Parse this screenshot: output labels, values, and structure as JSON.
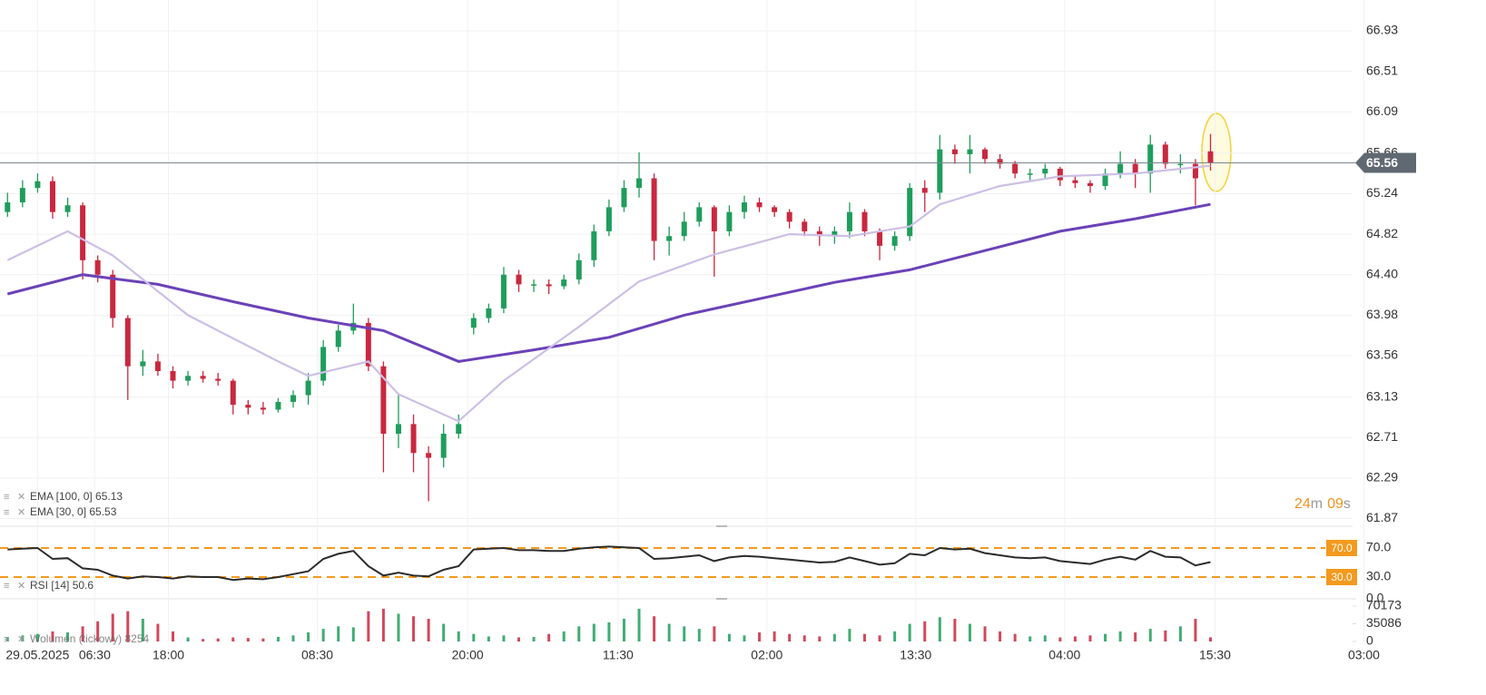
{
  "chart_data": [
    {
      "type": "candlestick",
      "xlim": [
        -0.5,
        91.5
      ],
      "ylim": [
        61.79,
        67.25
      ],
      "yticks": [
        66.93,
        66.51,
        66.09,
        65.66,
        65.24,
        64.82,
        {
          "value": 64.4,
          "label": "64.40"
        },
        63.98,
        63.56,
        63.13,
        62.71,
        62.29,
        61.87
      ],
      "up_color": "#1f9d5c",
      "down_color": "#c9283f",
      "open": [
        65.05,
        65.15,
        65.3,
        65.37,
        65.05,
        65.12,
        64.55,
        64.4,
        63.95,
        63.45,
        63.5,
        63.4,
        63.3,
        63.35,
        63.32,
        63.3,
        63.05,
        63.02,
        63.0,
        63.08,
        63.15,
        63.3,
        63.65,
        63.82,
        63.9,
        63.45,
        62.75,
        62.85,
        62.55,
        62.5,
        62.75,
        63.85,
        63.95,
        64.05,
        64.4,
        64.3,
        64.3,
        64.28,
        64.35,
        64.55,
        64.85,
        65.1,
        65.3,
        65.4,
        64.75,
        64.8,
        64.95,
        65.1,
        64.85,
        65.05,
        65.15,
        65.1,
        65.05,
        64.95,
        64.85,
        64.8,
        64.85,
        65.05,
        64.85,
        64.7,
        64.8,
        65.3,
        65.25,
        65.7,
        65.65,
        65.7,
        65.6,
        65.55,
        65.45,
        65.45,
        65.5,
        65.38,
        65.35,
        65.32,
        65.45,
        65.55,
        65.45,
        65.75,
        65.55,
        65.55,
        65.68
      ],
      "high": [
        65.25,
        65.38,
        65.45,
        65.42,
        65.2,
        65.15,
        64.6,
        64.45,
        63.98,
        63.62,
        63.58,
        63.45,
        63.4,
        63.4,
        63.38,
        63.32,
        63.1,
        63.08,
        63.12,
        63.2,
        63.38,
        63.72,
        63.88,
        64.1,
        63.95,
        63.5,
        63.15,
        62.95,
        62.62,
        62.85,
        62.95,
        64.0,
        64.1,
        64.48,
        64.45,
        64.35,
        64.35,
        64.4,
        64.62,
        64.92,
        65.18,
        65.38,
        65.67,
        65.45,
        64.9,
        65.05,
        65.15,
        65.12,
        65.12,
        65.22,
        65.2,
        65.12,
        65.08,
        64.98,
        64.9,
        64.9,
        65.15,
        65.08,
        64.88,
        64.85,
        65.35,
        65.38,
        65.85,
        65.75,
        65.85,
        65.72,
        65.65,
        65.58,
        65.5,
        65.55,
        65.52,
        65.42,
        65.38,
        65.5,
        65.68,
        65.6,
        65.85,
        65.78,
        65.65,
        65.6,
        65.86
      ],
      "low": [
        65.0,
        65.1,
        65.25,
        64.98,
        65.0,
        64.35,
        64.32,
        63.85,
        63.1,
        63.35,
        63.35,
        63.22,
        63.25,
        63.28,
        63.25,
        62.95,
        62.95,
        62.95,
        62.97,
        63.02,
        63.05,
        63.25,
        63.6,
        63.78,
        63.4,
        62.35,
        62.6,
        62.35,
        62.05,
        62.4,
        62.7,
        63.78,
        63.9,
        64.0,
        64.22,
        64.22,
        64.2,
        64.25,
        64.3,
        64.48,
        64.8,
        65.05,
        65.2,
        64.55,
        64.6,
        64.75,
        64.9,
        64.38,
        64.8,
        64.98,
        65.05,
        65.0,
        64.88,
        64.8,
        64.7,
        64.72,
        64.78,
        64.8,
        64.55,
        64.65,
        64.75,
        65.05,
        65.18,
        65.55,
        65.45,
        65.55,
        65.5,
        65.4,
        65.38,
        65.4,
        65.32,
        65.3,
        65.25,
        65.28,
        65.4,
        65.3,
        65.25,
        65.5,
        65.45,
        65.12,
        65.48
      ],
      "close": [
        65.15,
        65.3,
        65.37,
        65.05,
        65.12,
        64.55,
        64.4,
        63.95,
        63.45,
        63.5,
        63.4,
        63.3,
        63.35,
        63.32,
        63.3,
        63.05,
        63.02,
        63.0,
        63.08,
        63.15,
        63.3,
        63.65,
        63.82,
        63.9,
        63.45,
        62.75,
        62.85,
        62.55,
        62.5,
        62.75,
        62.85,
        63.95,
        64.05,
        64.4,
        64.3,
        64.3,
        64.28,
        64.35,
        64.55,
        64.85,
        65.1,
        65.3,
        65.4,
        64.75,
        64.8,
        64.95,
        65.1,
        64.85,
        65.05,
        65.15,
        65.1,
        65.05,
        64.95,
        64.85,
        64.8,
        64.85,
        65.05,
        64.85,
        64.7,
        64.8,
        65.3,
        65.25,
        65.7,
        65.65,
        65.7,
        65.6,
        65.55,
        65.45,
        65.45,
        65.5,
        65.38,
        65.35,
        65.32,
        65.45,
        65.55,
        65.45,
        65.75,
        65.55,
        65.55,
        65.4,
        65.56
      ],
      "series": [
        {
          "name": "EMA [100, 0] 65.13",
          "color": "#6b42b8",
          "x": [
            0,
            5,
            10,
            15,
            20,
            25,
            30,
            35,
            40,
            45,
            50,
            55,
            60,
            65,
            70,
            75,
            80
          ],
          "values": [
            64.2,
            64.4,
            64.3,
            64.12,
            63.95,
            63.82,
            63.5,
            63.62,
            63.75,
            63.98,
            64.15,
            64.32,
            64.45,
            64.65,
            64.85,
            64.98,
            65.13
          ]
        },
        {
          "name": "EMA [30, 0] 65.53",
          "color": "#cdbfe6",
          "x": [
            0,
            4,
            7,
            12,
            18,
            20,
            24,
            26,
            30,
            33,
            38,
            42,
            47,
            52,
            56,
            60,
            62,
            66,
            70,
            75,
            80
          ],
          "values": [
            64.55,
            64.85,
            64.6,
            63.98,
            63.5,
            63.35,
            63.5,
            63.16,
            62.88,
            63.3,
            63.86,
            64.33,
            64.61,
            64.82,
            64.8,
            64.9,
            65.13,
            65.32,
            65.42,
            65.45,
            65.53
          ]
        }
      ],
      "current_price": 65.56,
      "countdown": [
        "24",
        "m",
        "09",
        "s"
      ]
    },
    {
      "type": "line",
      "name": "RSI [14] 50.6",
      "color": "#2b2b2b",
      "xlim": [
        -0.5,
        91.5
      ],
      "ylim": [
        0,
        100
      ],
      "yticks": [
        {
          "value": 70,
          "label": "70.0"
        },
        {
          "value": 30,
          "label": "30.0"
        },
        {
          "value": 0,
          "label": "0.0"
        }
      ],
      "levels": [
        70,
        30
      ],
      "level_color": "#f39a1e",
      "values": [
        68,
        69,
        70,
        55,
        56,
        42,
        40,
        32,
        28,
        31,
        30,
        28,
        31,
        30,
        30,
        26,
        28,
        27,
        30,
        34,
        38,
        55,
        62,
        66,
        45,
        32,
        36,
        32,
        31,
        40,
        45,
        68,
        69,
        70,
        67,
        67,
        66,
        66,
        69,
        71,
        72,
        71,
        70,
        55,
        56,
        58,
        60,
        52,
        57,
        59,
        58,
        56,
        54,
        52,
        50,
        51,
        57,
        52,
        47,
        49,
        62,
        60,
        70,
        68,
        69,
        63,
        60,
        57,
        56,
        57,
        52,
        50,
        48,
        54,
        58,
        54,
        66,
        58,
        57,
        46,
        50.6
      ]
    },
    {
      "type": "bar",
      "name": "Wolumen (tickowy) 8254",
      "xlim": [
        -0.5,
        91.5
      ],
      "ylim": [
        0,
        81000
      ],
      "yticks": [
        70173,
        35086,
        0
      ],
      "xticks": [
        {
          "value": 2,
          "label": "29.05.2025"
        },
        {
          "value": 5.8,
          "label": "06:30"
        },
        {
          "value": 10.7,
          "label": "18:00"
        },
        {
          "value": 20.6,
          "label": "08:30"
        },
        {
          "value": 30.6,
          "label": "20:00"
        },
        {
          "value": 40.6,
          "label": "11:30"
        },
        {
          "value": 50.5,
          "label": "02:00"
        },
        {
          "value": 60.4,
          "label": "13:30"
        },
        {
          "value": 70.3,
          "label": "04:00"
        },
        {
          "value": 80.3,
          "label": "15:30"
        },
        {
          "value": 90.2,
          "label": "03:00"
        }
      ],
      "values": [
        8000,
        12000,
        15000,
        20000,
        18000,
        30000,
        40000,
        55000,
        60000,
        45000,
        35000,
        20000,
        8000,
        5000,
        6000,
        8000,
        7000,
        6000,
        9000,
        12000,
        18000,
        25000,
        30000,
        28000,
        60000,
        65000,
        55000,
        50000,
        45000,
        35000,
        20000,
        15000,
        10000,
        12000,
        8000,
        9000,
        15000,
        20000,
        30000,
        35000,
        38000,
        45000,
        65000,
        50000,
        35000,
        30000,
        25000,
        30000,
        15000,
        12000,
        18000,
        20000,
        15000,
        12000,
        10000,
        15000,
        25000,
        15000,
        12000,
        20000,
        35000,
        40000,
        48000,
        45000,
        35000,
        30000,
        20000,
        15000,
        10000,
        12000,
        8000,
        10000,
        12000,
        15000,
        20000,
        18000,
        25000,
        22000,
        30000,
        45000,
        8254
      ]
    }
  ]
}
